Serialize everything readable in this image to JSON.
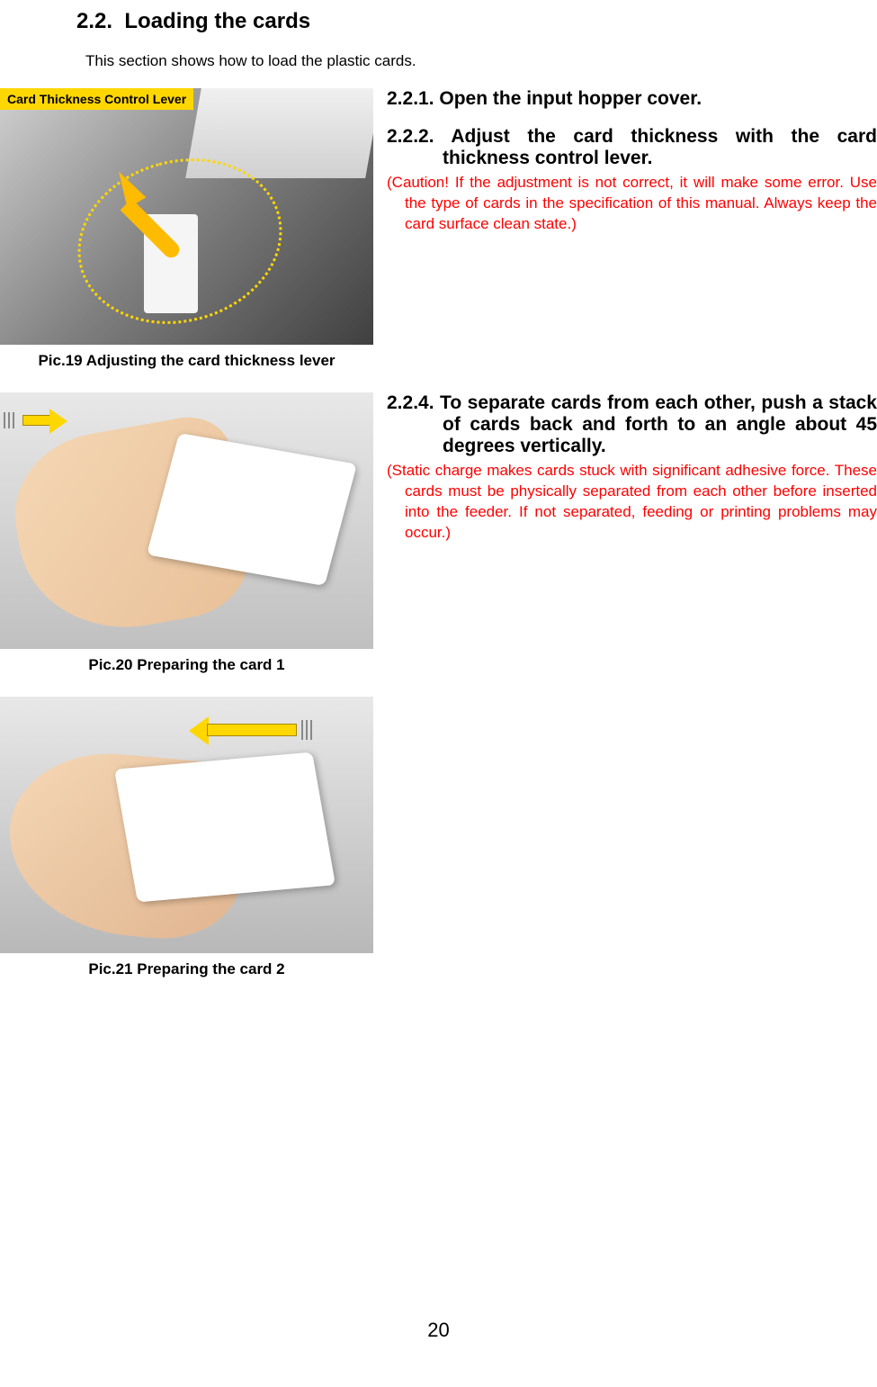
{
  "section": {
    "number": "2.2.",
    "title": "Loading the cards",
    "intro": "This section shows how to load the plastic cards."
  },
  "figures": {
    "fig1": {
      "label_box": "Card Thickness Control Lever",
      "caption": "Pic.19    Adjusting the card thickness lever"
    },
    "fig2": {
      "caption": "Pic.20    Preparing the card 1"
    },
    "fig3": {
      "caption": "Pic.21    Preparing the card 2"
    }
  },
  "steps": {
    "step1": {
      "heading": "2.2.1. Open the input hopper cover."
    },
    "step2": {
      "heading": "2.2.2. Adjust the card thickness with the card thickness control lever.",
      "caution": "(Caution! If the adjustment is not correct, it will make some error. Use the type of cards in the specification of this manual. Always keep the card surface clean state.)"
    },
    "step4": {
      "heading": "2.2.4. To separate cards from each other, push a stack of cards back and forth to an angle about 45 degrees vertically.",
      "caution": "(Static charge makes cards stuck with significant adhesive force. These cards must be physically separated from each other before inserted into the feeder. If not separated, feeding or printing problems may occur.)"
    }
  },
  "page_number": "20",
  "colors": {
    "caution_text": "#ff0000",
    "label_bg": "#ffd700",
    "arrow_fill": "#ffd700"
  }
}
